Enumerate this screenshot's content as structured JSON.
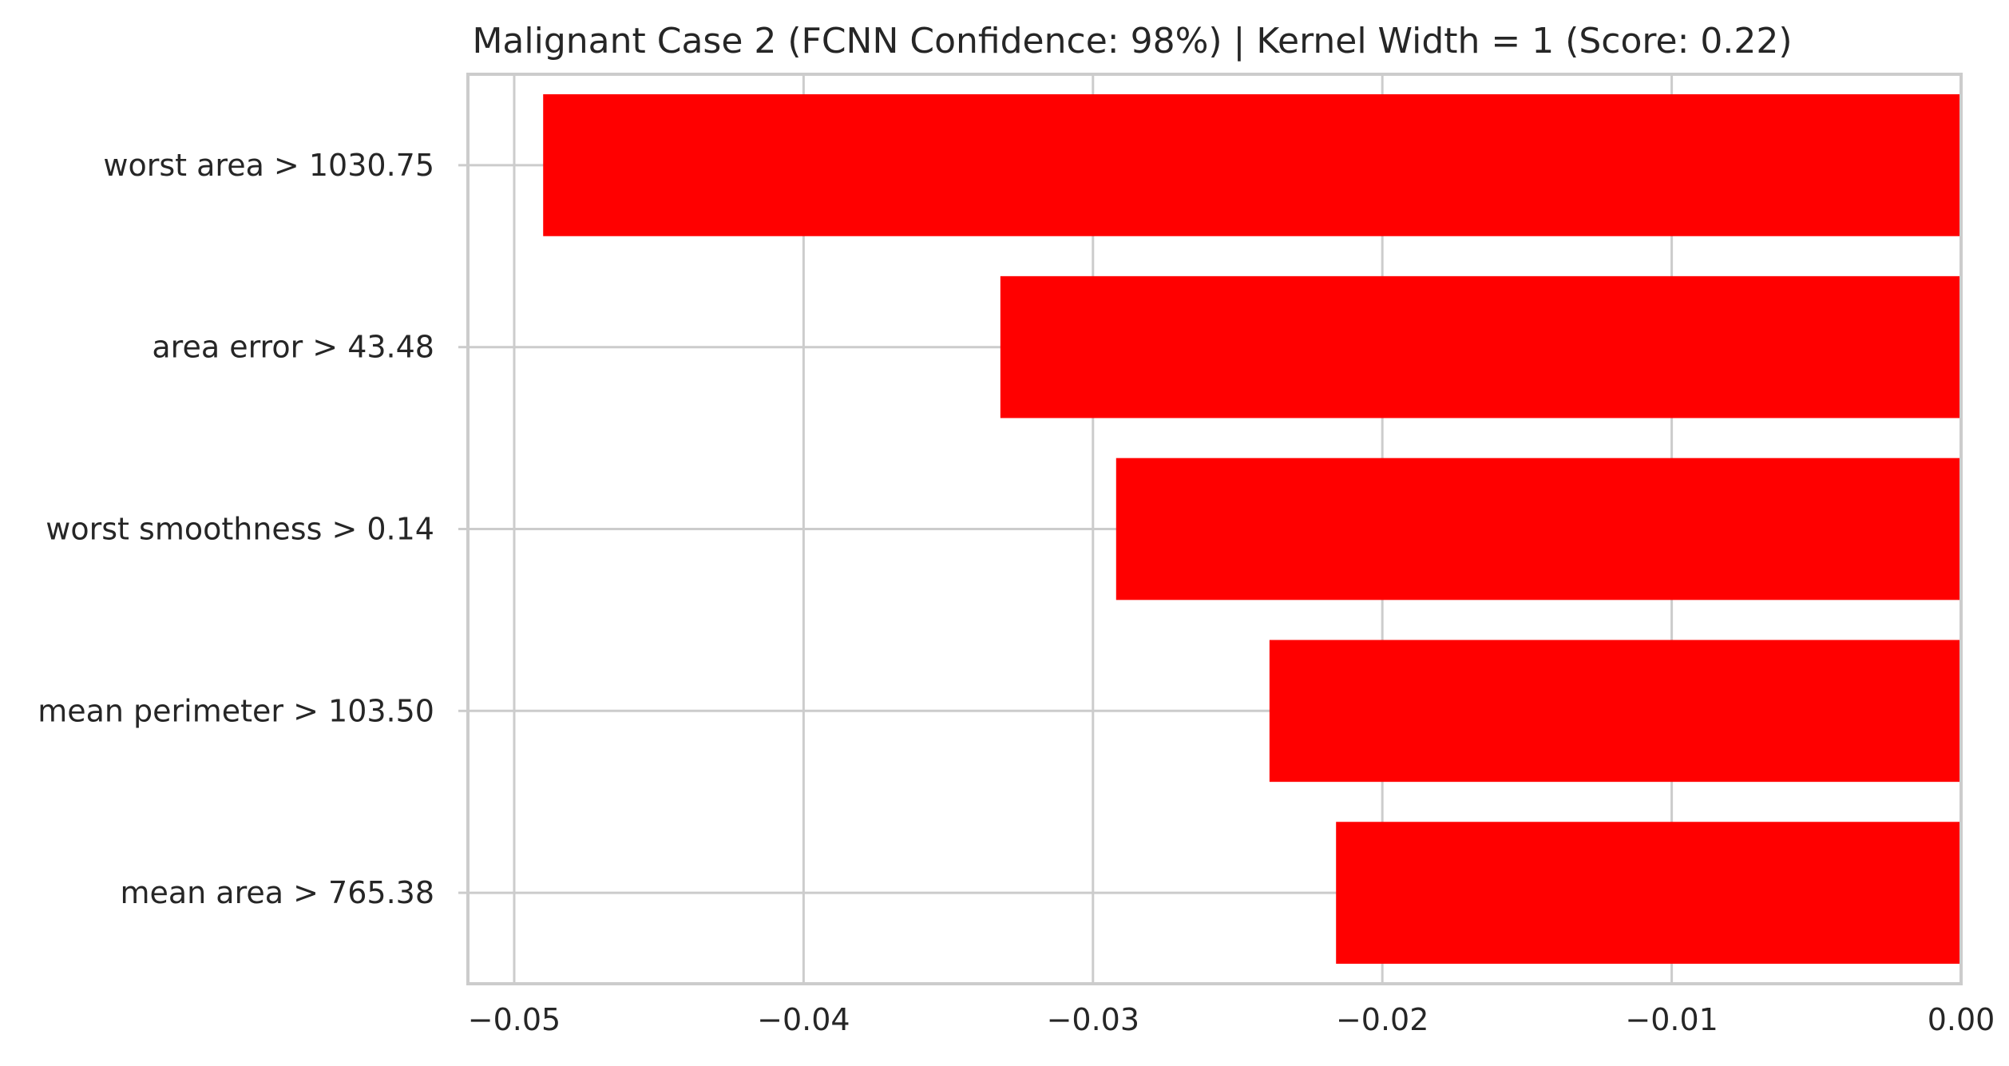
{
  "chart_data": {
    "type": "bar",
    "orientation": "horizontal",
    "title": "Malignant Case 2 (FCNN Confidence: 98%) | Kernel Width = 1 (Score: 0.22)",
    "xlabel": "",
    "ylabel": "",
    "categories": [
      "worst area > 1030.75",
      "area error > 43.48",
      "worst smoothness > 0.14",
      "mean perimeter > 103.50",
      "mean area > 765.38"
    ],
    "values": [
      -0.049,
      -0.0332,
      -0.0292,
      -0.0239,
      -0.0216
    ],
    "xlim": [
      -0.0516,
      0.0
    ],
    "xticks": [
      -0.05,
      -0.04,
      -0.03,
      -0.02,
      -0.01,
      0.0
    ],
    "xtick_labels": [
      "−0.05",
      "−0.04",
      "−0.03",
      "−0.02",
      "−0.01",
      "0.00"
    ],
    "bar_color": "#ff0000",
    "grid": true,
    "legend": "none"
  }
}
